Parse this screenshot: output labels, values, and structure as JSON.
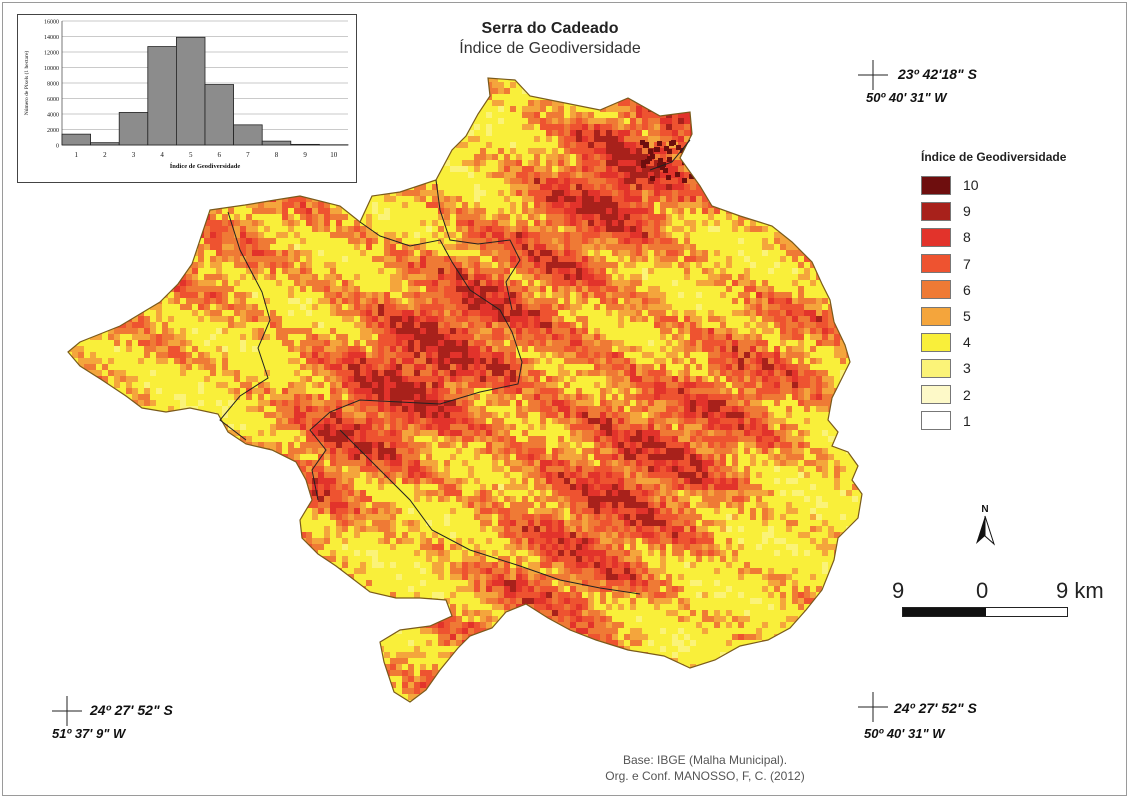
{
  "title": "Serra do Cadeado",
  "subtitle": "Índice de Geodiversidade",
  "coordinates": {
    "top_right": {
      "lat": "23º 42'18\" S",
      "lon": "50º 40' 31\" W"
    },
    "bottom_left": {
      "lat": "24º 27' 52\" S",
      "lon": "51º 37' 9\" W"
    },
    "bottom_right": {
      "lat": "24º 27' 52\" S",
      "lon": "50º 40' 31\" W"
    }
  },
  "legend": {
    "title": "Índice de Geodiversidade",
    "items": [
      {
        "label": "10",
        "color": "#6e0e0e"
      },
      {
        "label": "9",
        "color": "#a8211b"
      },
      {
        "label": "8",
        "color": "#e2332b"
      },
      {
        "label": "7",
        "color": "#ee5330"
      },
      {
        "label": "6",
        "color": "#ef7a35"
      },
      {
        "label": "5",
        "color": "#f4a53c"
      },
      {
        "label": "4",
        "color": "#f9ef3a"
      },
      {
        "label": "3",
        "color": "#fbf378"
      },
      {
        "label": "2",
        "color": "#fdf9c8"
      },
      {
        "label": "1",
        "color": "#ffffff"
      }
    ]
  },
  "north_arrow": {
    "label": "N"
  },
  "scale_bar": {
    "left": "9",
    "middle": "0",
    "right": "9 km"
  },
  "credits": {
    "line1": "Base:  IBGE (Malha Municipal).",
    "line2": "Org. e Conf. MANOSSO, F, C. (2012)"
  },
  "chart_data": {
    "type": "bar",
    "categories": [
      "1",
      "2",
      "3",
      "4",
      "5",
      "6",
      "7",
      "8",
      "9",
      "10"
    ],
    "values": [
      1400,
      300,
      4200,
      12700,
      13900,
      7800,
      2600,
      500,
      80,
      30
    ],
    "xlabel": "Índice de Geodiversidade",
    "ylabel": "Número de Pixels (1 hectare)",
    "ylim": [
      0,
      16000
    ],
    "yticks": [
      "0",
      "2000",
      "4000",
      "6000",
      "8000",
      "10000",
      "12000",
      "14000",
      "16000"
    ],
    "grid": true,
    "bar_color": "#8c8c8c"
  }
}
